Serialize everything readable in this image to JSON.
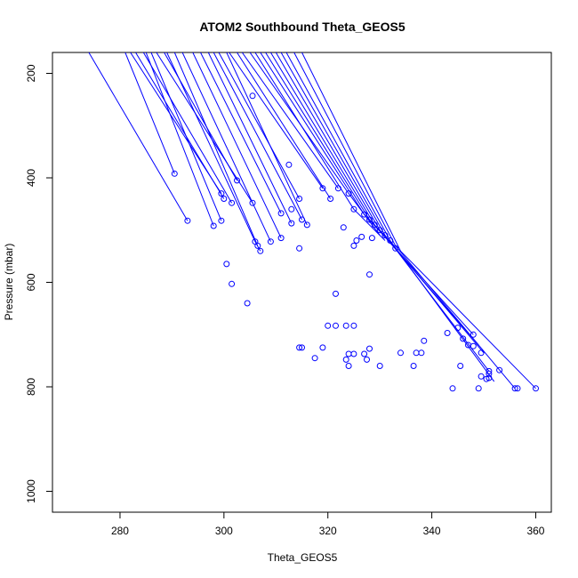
{
  "chart_data": {
    "type": "line",
    "title": "ATOM2 Southbound Theta_GEOS5",
    "xlabel": "Theta_GEOS5",
    "ylabel": "Pressure (mbar)",
    "xlim": [
      267,
      363
    ],
    "ylim": [
      1040,
      160
    ],
    "y_reversed": true,
    "x_ticks": [
      "280",
      "300",
      "320",
      "340",
      "360"
    ],
    "y_ticks": [
      "200",
      "400",
      "600",
      "800",
      "1000"
    ],
    "series_color": "#0000ff",
    "marker": "open-circle",
    "profiles": [
      {
        "x": [
          274,
          293
        ],
        "y": [
          160,
          482
        ]
      },
      {
        "x": [
          281,
          290.5
        ],
        "y": [
          160,
          392
        ]
      },
      {
        "x": [
          282,
          299.5
        ],
        "y": [
          160,
          430
        ]
      },
      {
        "x": [
          283,
          300
        ],
        "y": [
          160,
          440
        ]
      },
      {
        "x": [
          284.5,
          301.5
        ],
        "y": [
          160,
          448
        ]
      },
      {
        "x": [
          285,
          298
        ],
        "y": [
          160,
          492
        ]
      },
      {
        "x": [
          286,
          299.5
        ],
        "y": [
          160,
          482
        ]
      },
      {
        "x": [
          287,
          305.5
        ],
        "y": [
          160,
          448
        ]
      },
      {
        "x": [
          288.5,
          302.5
        ],
        "y": [
          160,
          405
        ]
      },
      {
        "x": [
          289,
          306,
          307
        ],
        "y": [
          160,
          522,
          540
        ]
      },
      {
        "x": [
          290.5,
          306.5
        ],
        "y": [
          160,
          530
        ]
      },
      {
        "x": [
          292,
          309
        ],
        "y": [
          160,
          522
        ]
      },
      {
        "x": [
          294,
          311
        ],
        "y": [
          160,
          515
        ]
      },
      {
        "x": [
          295.5,
          311
        ],
        "y": [
          160,
          468
        ]
      },
      {
        "x": [
          297,
          313
        ],
        "y": [
          160,
          487
        ]
      },
      {
        "x": [
          298,
          315
        ],
        "y": [
          160,
          480
        ]
      },
      {
        "x": [
          299,
          314.5
        ],
        "y": [
          160,
          440
        ]
      },
      {
        "x": [
          300.5,
          316
        ],
        "y": [
          160,
          490
        ]
      },
      {
        "x": [
          301,
          319
        ],
        "y": [
          160,
          420
        ]
      },
      {
        "x": [
          302.5,
          320.5
        ],
        "y": [
          160,
          440
        ]
      },
      {
        "x": [
          303.5,
          322
        ],
        "y": [
          160,
          420
        ]
      },
      {
        "x": [
          305,
          324,
          330
        ],
        "y": [
          160,
          430,
          510
        ]
      },
      {
        "x": [
          306,
          325,
          331
        ],
        "y": [
          160,
          460,
          520
        ]
      },
      {
        "x": [
          307,
          327,
          333
        ],
        "y": [
          160,
          470,
          535
        ]
      },
      {
        "x": [
          308,
          328,
          348
        ],
        "y": [
          160,
          480,
          700
        ]
      },
      {
        "x": [
          309,
          329,
          349
        ],
        "y": [
          160,
          490,
          720
        ]
      },
      {
        "x": [
          310,
          330,
          350
        ],
        "y": [
          160,
          500,
          735
        ]
      },
      {
        "x": [
          311,
          331,
          351
        ],
        "y": [
          160,
          510,
          770
        ]
      },
      {
        "x": [
          312,
          332,
          352
        ],
        "y": [
          160,
          520,
          790
        ]
      },
      {
        "x": [
          313.5,
          333,
          356
        ],
        "y": [
          160,
          530,
          803
        ]
      },
      {
        "x": [
          315,
          334,
          360
        ],
        "y": [
          160,
          540,
          803
        ]
      }
    ],
    "points": [
      {
        "x": 305.5,
        "y": 243
      },
      {
        "x": 312.5,
        "y": 375
      },
      {
        "x": 290.5,
        "y": 392
      },
      {
        "x": 302.5,
        "y": 405
      },
      {
        "x": 319,
        "y": 420
      },
      {
        "x": 322,
        "y": 420
      },
      {
        "x": 299.5,
        "y": 430
      },
      {
        "x": 324,
        "y": 430
      },
      {
        "x": 300,
        "y": 440
      },
      {
        "x": 314.5,
        "y": 440
      },
      {
        "x": 320.5,
        "y": 440
      },
      {
        "x": 301.5,
        "y": 448
      },
      {
        "x": 305.5,
        "y": 448
      },
      {
        "x": 313,
        "y": 460
      },
      {
        "x": 325,
        "y": 460
      },
      {
        "x": 311,
        "y": 468
      },
      {
        "x": 327,
        "y": 470
      },
      {
        "x": 293,
        "y": 482
      },
      {
        "x": 299.5,
        "y": 482
      },
      {
        "x": 315,
        "y": 480
      },
      {
        "x": 328,
        "y": 480
      },
      {
        "x": 313,
        "y": 487
      },
      {
        "x": 298,
        "y": 492
      },
      {
        "x": 316,
        "y": 490
      },
      {
        "x": 329,
        "y": 490
      },
      {
        "x": 323,
        "y": 495
      },
      {
        "x": 330,
        "y": 500
      },
      {
        "x": 331,
        "y": 510
      },
      {
        "x": 326.5,
        "y": 513
      },
      {
        "x": 311,
        "y": 515
      },
      {
        "x": 328.5,
        "y": 515
      },
      {
        "x": 306,
        "y": 522
      },
      {
        "x": 309,
        "y": 522
      },
      {
        "x": 325.5,
        "y": 520
      },
      {
        "x": 332,
        "y": 520
      },
      {
        "x": 306.5,
        "y": 530
      },
      {
        "x": 325,
        "y": 530
      },
      {
        "x": 333,
        "y": 535
      },
      {
        "x": 307,
        "y": 540
      },
      {
        "x": 314.5,
        "y": 535
      },
      {
        "x": 300.5,
        "y": 565
      },
      {
        "x": 328,
        "y": 585
      },
      {
        "x": 301.5,
        "y": 603
      },
      {
        "x": 321.5,
        "y": 622
      },
      {
        "x": 304.5,
        "y": 640
      },
      {
        "x": 320,
        "y": 683
      },
      {
        "x": 321.5,
        "y": 683
      },
      {
        "x": 323.5,
        "y": 683
      },
      {
        "x": 325,
        "y": 683
      },
      {
        "x": 345,
        "y": 687
      },
      {
        "x": 343,
        "y": 697
      },
      {
        "x": 348,
        "y": 700
      },
      {
        "x": 346,
        "y": 708
      },
      {
        "x": 338.5,
        "y": 712
      },
      {
        "x": 347,
        "y": 720
      },
      {
        "x": 348,
        "y": 722
      },
      {
        "x": 314.5,
        "y": 725
      },
      {
        "x": 315,
        "y": 725
      },
      {
        "x": 319,
        "y": 725
      },
      {
        "x": 328,
        "y": 727
      },
      {
        "x": 334,
        "y": 735
      },
      {
        "x": 337,
        "y": 735
      },
      {
        "x": 338,
        "y": 735
      },
      {
        "x": 349.5,
        "y": 735
      },
      {
        "x": 324,
        "y": 737
      },
      {
        "x": 325,
        "y": 737
      },
      {
        "x": 327,
        "y": 737
      },
      {
        "x": 317.5,
        "y": 745
      },
      {
        "x": 323.5,
        "y": 748
      },
      {
        "x": 327.5,
        "y": 748
      },
      {
        "x": 324,
        "y": 760
      },
      {
        "x": 330,
        "y": 760
      },
      {
        "x": 336.5,
        "y": 760
      },
      {
        "x": 345.5,
        "y": 760
      },
      {
        "x": 353,
        "y": 768
      },
      {
        "x": 351,
        "y": 770
      },
      {
        "x": 351,
        "y": 775
      },
      {
        "x": 349.5,
        "y": 780
      },
      {
        "x": 351,
        "y": 783
      },
      {
        "x": 350.5,
        "y": 785
      },
      {
        "x": 344,
        "y": 803
      },
      {
        "x": 349,
        "y": 803
      },
      {
        "x": 356,
        "y": 803
      },
      {
        "x": 356.5,
        "y": 803
      },
      {
        "x": 360,
        "y": 803
      }
    ]
  }
}
